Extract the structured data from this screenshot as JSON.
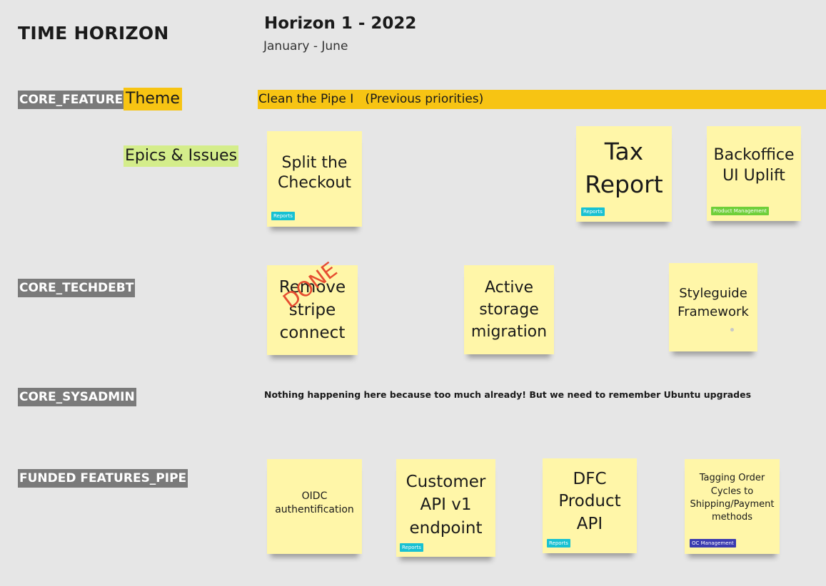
{
  "page_title": "TIME HORIZON",
  "horizon": {
    "title": "Horizon 1 - 2022",
    "subtitle": "January - June"
  },
  "labels": {
    "theme": "Theme",
    "epics": "Epics & Issues"
  },
  "rows": {
    "core_feature": "CORE_FEATURE",
    "core_techdebt": "CORE_TECHDEBT",
    "core_sysadmin": "CORE_SYSADMIN",
    "funded_features": "FUNDED FEATURES_PIPE"
  },
  "theme_bar": "Clean the Pipe I   (Previous priorities)",
  "sysadmin_note": "Nothing happening here because too much already! But we need to remember Ubuntu upgrades",
  "done_stamp": "DONE",
  "colors": {
    "sticky": "#fff6a8",
    "theme": "#f7c413",
    "epics": "#d4ed8b",
    "reports_badge": "#18c1d2",
    "pm_badge": "#6fcf3a",
    "oc_badge": "#3b3bb0"
  },
  "notes": {
    "split_checkout": {
      "text": "Split the Checkout",
      "badge": "Reports"
    },
    "tax_report": {
      "text": "Tax Report",
      "badge": "Reports"
    },
    "backoffice": {
      "text": "Backoffice UI Uplift",
      "badge": "Product Management"
    },
    "remove_stripe": {
      "text": "Remove stripe connect"
    },
    "active_storage": {
      "text": "Active storage migration"
    },
    "styleguide": {
      "text": "Styleguide Framework"
    },
    "oidc": {
      "text": "OIDC authentification"
    },
    "customer_api": {
      "text": "Customer API v1 endpoint",
      "badge": "Reports"
    },
    "dfc_api": {
      "text": "DFC Product API",
      "badge": "Reports"
    },
    "tagging": {
      "text": "Tagging Order Cycles to Shipping/Payment methods",
      "badge": "OC Management"
    }
  }
}
